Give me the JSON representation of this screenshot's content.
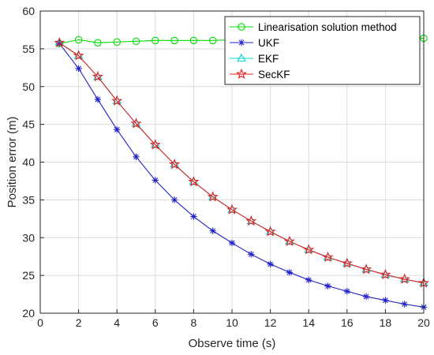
{
  "chart_data": {
    "type": "line",
    "title": "",
    "xlabel": "Observe time (s)",
    "ylabel": "Position error (m)",
    "xlim": [
      0,
      20
    ],
    "ylim": [
      20,
      60
    ],
    "xticks": [
      0,
      2,
      4,
      6,
      8,
      10,
      12,
      14,
      16,
      18,
      20
    ],
    "yticks": [
      20,
      25,
      30,
      35,
      40,
      45,
      50,
      55,
      60
    ],
    "grid": true,
    "legend_position": "top-right",
    "x": [
      1,
      2,
      3,
      4,
      5,
      6,
      7,
      8,
      9,
      10,
      11,
      12,
      13,
      14,
      15,
      16,
      17,
      18,
      19,
      20
    ],
    "series": [
      {
        "name": "Linearisation solution method",
        "color": "#00dd00",
        "marker": "circle",
        "values": [
          55.7,
          56.2,
          55.8,
          55.9,
          56.0,
          56.1,
          56.1,
          56.1,
          56.1,
          56.2,
          56.2,
          56.2,
          56.2,
          56.2,
          56.3,
          56.3,
          56.3,
          56.3,
          56.4,
          56.4
        ]
      },
      {
        "name": "UKF",
        "color": "#2020c8",
        "marker": "asterisk",
        "values": [
          55.7,
          52.4,
          48.3,
          44.3,
          40.7,
          37.6,
          35.0,
          32.8,
          30.9,
          29.3,
          27.8,
          26.5,
          25.4,
          24.4,
          23.6,
          22.9,
          22.2,
          21.7,
          21.2,
          20.8
        ]
      },
      {
        "name": "EKF",
        "color": "#00d8d8",
        "marker": "triangle",
        "values": [
          55.8,
          54.1,
          51.3,
          48.1,
          45.1,
          42.3,
          39.7,
          37.4,
          35.4,
          33.7,
          32.2,
          30.8,
          29.5,
          28.4,
          27.4,
          26.6,
          25.8,
          25.1,
          24.5,
          24.0
        ]
      },
      {
        "name": "SecKF",
        "color": "#e02020",
        "marker": "star",
        "values": [
          55.8,
          54.1,
          51.3,
          48.1,
          45.1,
          42.3,
          39.7,
          37.4,
          35.4,
          33.7,
          32.2,
          30.8,
          29.5,
          28.4,
          27.4,
          26.6,
          25.8,
          25.1,
          24.5,
          24.0
        ]
      }
    ]
  }
}
